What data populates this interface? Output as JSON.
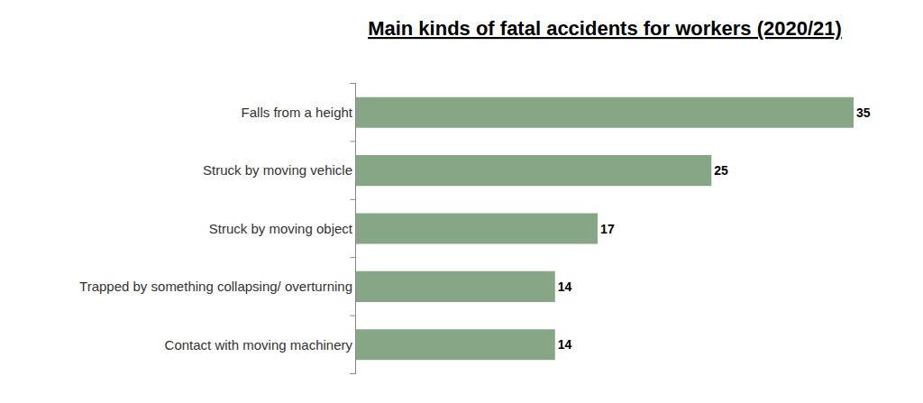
{
  "chart_data": {
    "type": "bar",
    "title": "Main kinds of fatal accidents for workers (2020/21)",
    "orientation": "horizontal",
    "categories": [
      "Falls from a height",
      "Struck by moving vehicle",
      "Struck by moving object",
      "Trapped by something collapsing/ overturning",
      "Contact with moving machinery"
    ],
    "values": [
      35,
      25,
      17,
      14,
      14
    ],
    "color": "#86a685",
    "xlim": [
      0,
      35
    ],
    "data_labels": true,
    "tick_labels": "y",
    "grid": false
  }
}
